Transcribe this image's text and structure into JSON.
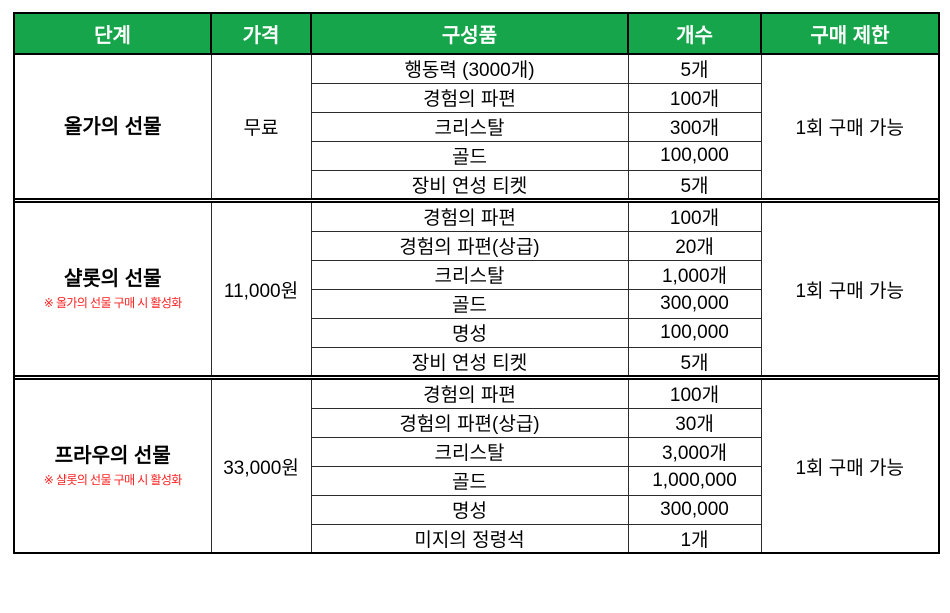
{
  "table": {
    "columns": [
      "단계",
      "가격",
      "구성품",
      "개수",
      "구매 제한"
    ],
    "colors": {
      "header_bg": "#16a54b",
      "header_text": "#ffffff",
      "border": "#000000",
      "grid": "#2b2b2b",
      "note_red": "#fe2020"
    },
    "sections": [
      {
        "stage": "올가의 선물",
        "note": "",
        "price": "무료",
        "limit": "1회 구매 가능",
        "items": [
          {
            "name": "행동력 (3000개)",
            "count": "5개"
          },
          {
            "name": "경험의 파편",
            "count": "100개"
          },
          {
            "name": "크리스탈",
            "count": "300개"
          },
          {
            "name": "골드",
            "count": "100,000"
          },
          {
            "name": "장비 연성 티켓",
            "count": "5개"
          }
        ]
      },
      {
        "stage": "샬롯의 선물",
        "note": "※ 올가의 선물 구매 시 활성화",
        "price": "11,000원",
        "limit": "1회 구매 가능",
        "items": [
          {
            "name": "경험의 파편",
            "count": "100개"
          },
          {
            "name": "경험의 파편(상급)",
            "count": "20개"
          },
          {
            "name": "크리스탈",
            "count": "1,000개"
          },
          {
            "name": "골드",
            "count": "300,000"
          },
          {
            "name": "명성",
            "count": "100,000"
          },
          {
            "name": "장비 연성 티켓",
            "count": "5개"
          }
        ]
      },
      {
        "stage": "프라우의 선물",
        "note": "※ 샬롯의 선물 구매 시 활성화",
        "price": "33,000원",
        "limit": "1회 구매 가능",
        "items": [
          {
            "name": "경험의 파편",
            "count": "100개"
          },
          {
            "name": "경험의 파편(상급)",
            "count": "30개"
          },
          {
            "name": "크리스탈",
            "count": "3,000개"
          },
          {
            "name": "골드",
            "count": "1,000,000"
          },
          {
            "name": "명성",
            "count": "300,000"
          },
          {
            "name": "미지의 정령석",
            "count": "1개"
          }
        ]
      }
    ]
  }
}
